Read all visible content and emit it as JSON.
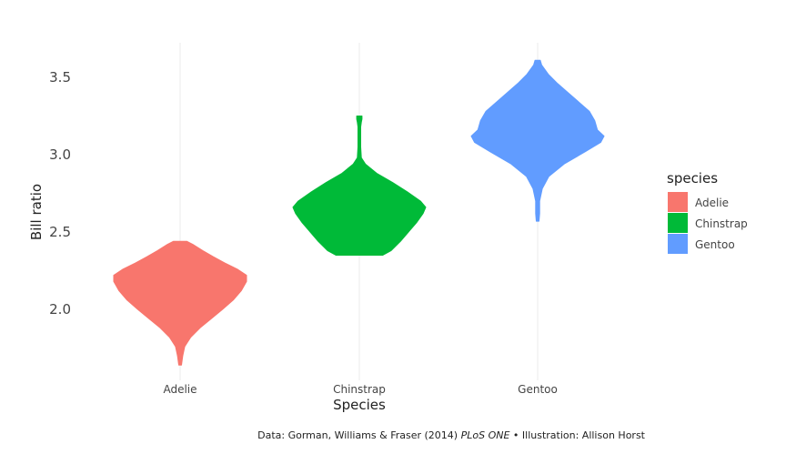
{
  "chart_data": {
    "type": "violin",
    "xlabel": "Species",
    "ylabel": "Bill ratio",
    "categories": [
      "Adelie",
      "Chinstrap",
      "Gentoo"
    ],
    "yticks": [
      2.0,
      2.5,
      3.0,
      3.5
    ],
    "ylim": [
      1.6,
      3.72
    ],
    "grid": "vertical major lines only",
    "legend": {
      "title": "species",
      "position": "right"
    },
    "series": [
      {
        "name": "Adelie",
        "color": "#F8766D",
        "profile": [
          [
            1.64,
            0.02
          ],
          [
            1.7,
            0.04
          ],
          [
            1.76,
            0.07
          ],
          [
            1.82,
            0.16
          ],
          [
            1.88,
            0.3
          ],
          [
            1.94,
            0.47
          ],
          [
            2.0,
            0.64
          ],
          [
            2.06,
            0.8
          ],
          [
            2.12,
            0.92
          ],
          [
            2.18,
            1.0
          ],
          [
            2.22,
            1.0
          ],
          [
            2.26,
            0.86
          ],
          [
            2.3,
            0.67
          ],
          [
            2.34,
            0.5
          ],
          [
            2.38,
            0.34
          ],
          [
            2.42,
            0.19
          ],
          [
            2.44,
            0.1
          ]
        ]
      },
      {
        "name": "Chinstrap",
        "color": "#00BA38",
        "profile": [
          [
            2.35,
            0.35
          ],
          [
            2.38,
            0.48
          ],
          [
            2.44,
            0.62
          ],
          [
            2.5,
            0.74
          ],
          [
            2.56,
            0.86
          ],
          [
            2.62,
            0.96
          ],
          [
            2.66,
            1.0
          ],
          [
            2.7,
            0.92
          ],
          [
            2.76,
            0.72
          ],
          [
            2.82,
            0.5
          ],
          [
            2.88,
            0.26
          ],
          [
            2.94,
            0.09
          ],
          [
            2.98,
            0.03
          ],
          [
            3.05,
            0.02
          ],
          [
            3.12,
            0.02
          ],
          [
            3.18,
            0.02
          ],
          [
            3.21,
            0.03
          ],
          [
            3.23,
            0.04
          ],
          [
            3.25,
            0.04
          ]
        ]
      },
      {
        "name": "Gentoo",
        "color": "#619CFF",
        "profile": [
          [
            2.57,
            0.02
          ],
          [
            2.62,
            0.03
          ],
          [
            2.7,
            0.03
          ],
          [
            2.78,
            0.07
          ],
          [
            2.86,
            0.17
          ],
          [
            2.94,
            0.4
          ],
          [
            3.02,
            0.72
          ],
          [
            3.08,
            0.95
          ],
          [
            3.12,
            1.0
          ],
          [
            3.16,
            0.9
          ],
          [
            3.22,
            0.86
          ],
          [
            3.28,
            0.78
          ],
          [
            3.34,
            0.62
          ],
          [
            3.4,
            0.46
          ],
          [
            3.46,
            0.3
          ],
          [
            3.52,
            0.16
          ],
          [
            3.58,
            0.06
          ],
          [
            3.61,
            0.04
          ]
        ]
      }
    ]
  },
  "caption": {
    "prefix": "Data: Gorman, Williams & Fraser (2014) ",
    "journal": "PLoS ONE",
    "suffix": " • Illustration:  Allison Horst"
  }
}
